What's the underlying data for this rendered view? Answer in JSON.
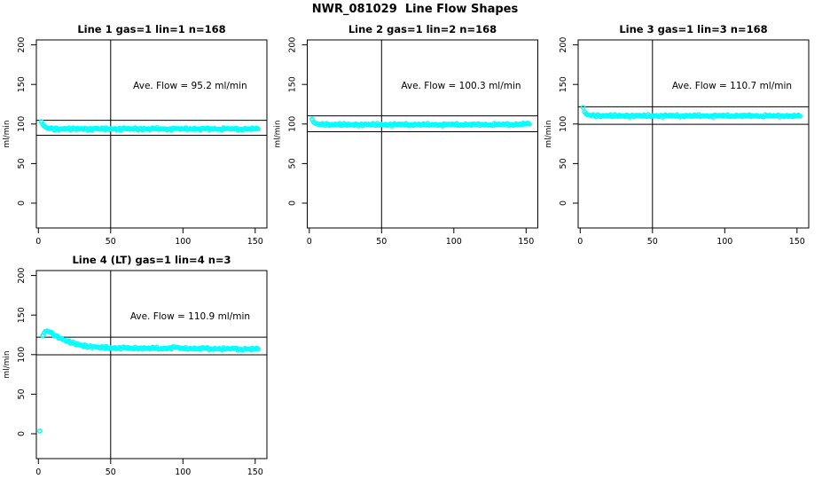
{
  "main_title": "NWR_081029  Line Flow Shapes",
  "colors": {
    "points": "#00ffff",
    "lines": "#000000",
    "background": "#ffffff",
    "text": "#000000"
  },
  "axes": {
    "ylabel": "ml/min",
    "x_ticks": [
      0,
      50,
      100,
      150
    ],
    "y_ticks": [
      0,
      50,
      100,
      150,
      200
    ],
    "vline_x": 50
  },
  "chart_data": [
    {
      "type": "scatter",
      "title": "Line 1 gas=1 lin=1 n=168",
      "annotation": "Ave. Flow =  95.2  ml/min",
      "ave_flow": 95.2,
      "units": "ml/min",
      "n": 168,
      "gas": 1,
      "lin": 1,
      "hlines": [
        104.7,
        85.7
      ],
      "vline": 50,
      "trace": [
        [
          2,
          103
        ],
        [
          3,
          99.5
        ],
        [
          4,
          97.5
        ],
        [
          5,
          96
        ],
        [
          6,
          95
        ],
        [
          8,
          94.3
        ],
        [
          10,
          94
        ],
        [
          15,
          93.8
        ],
        [
          20,
          94
        ],
        [
          25,
          93.6
        ],
        [
          30,
          94.2
        ],
        [
          35,
          93.5
        ],
        [
          40,
          94
        ],
        [
          45,
          93.7
        ],
        [
          50,
          94.1
        ],
        [
          55,
          93.6
        ],
        [
          60,
          94
        ],
        [
          65,
          93.8
        ],
        [
          70,
          94.2
        ],
        [
          75,
          93.5
        ],
        [
          80,
          93.9
        ],
        [
          85,
          94.1
        ],
        [
          90,
          93.6
        ],
        [
          95,
          94
        ],
        [
          100,
          93.7
        ],
        [
          105,
          94.2
        ],
        [
          110,
          93.5
        ],
        [
          115,
          93.9
        ],
        [
          120,
          94.1
        ],
        [
          125,
          93.6
        ],
        [
          130,
          94
        ],
        [
          135,
          93.8
        ],
        [
          140,
          93.5
        ],
        [
          145,
          94
        ],
        [
          150,
          93.7
        ],
        [
          152,
          93.8
        ]
      ]
    },
    {
      "type": "scatter",
      "title": "Line 2 gas=1 lin=2 n=168",
      "annotation": "Ave. Flow =  100.3  ml/min",
      "ave_flow": 100.3,
      "units": "ml/min",
      "n": 168,
      "gas": 1,
      "lin": 2,
      "hlines": [
        110.3,
        90.3
      ],
      "vline": 50,
      "trace": [
        [
          2,
          106
        ],
        [
          3,
          102.5
        ],
        [
          4,
          101
        ],
        [
          5,
          100.2
        ],
        [
          6,
          99.8
        ],
        [
          8,
          99.5
        ],
        [
          10,
          99.6
        ],
        [
          15,
          99.2
        ],
        [
          20,
          99.5
        ],
        [
          25,
          99
        ],
        [
          30,
          99.4
        ],
        [
          35,
          99.1
        ],
        [
          40,
          99.5
        ],
        [
          45,
          99.2
        ],
        [
          50,
          99.4
        ],
        [
          55,
          99
        ],
        [
          60,
          99.3
        ],
        [
          65,
          99.6
        ],
        [
          70,
          99.1
        ],
        [
          75,
          99.4
        ],
        [
          80,
          99.2
        ],
        [
          85,
          99.5
        ],
        [
          90,
          99
        ],
        [
          95,
          99.3
        ],
        [
          100,
          99.5
        ],
        [
          105,
          99.1
        ],
        [
          110,
          99.4
        ],
        [
          115,
          99.2
        ],
        [
          120,
          99.5
        ],
        [
          125,
          99
        ],
        [
          130,
          99.4
        ],
        [
          135,
          99.6
        ],
        [
          140,
          99.3
        ],
        [
          145,
          99.8
        ],
        [
          150,
          100
        ],
        [
          152,
          100.1
        ]
      ]
    },
    {
      "type": "scatter",
      "title": "Line 3 gas=1 lin=3 n=168",
      "annotation": "Ave. Flow =  110.7  ml/min",
      "ave_flow": 110.7,
      "units": "ml/min",
      "n": 168,
      "gas": 1,
      "lin": 3,
      "hlines": [
        121.8,
        99.6
      ],
      "vline": 50,
      "trace": [
        [
          2,
          121
        ],
        [
          3,
          115.5
        ],
        [
          4,
          113
        ],
        [
          5,
          111.8
        ],
        [
          6,
          111.2
        ],
        [
          8,
          110.8
        ],
        [
          10,
          110.6
        ],
        [
          15,
          110.4
        ],
        [
          20,
          110.6
        ],
        [
          25,
          110.2
        ],
        [
          30,
          110.5
        ],
        [
          35,
          110.3
        ],
        [
          40,
          110.6
        ],
        [
          45,
          110.2
        ],
        [
          50,
          110.5
        ],
        [
          55,
          110.1
        ],
        [
          60,
          110.4
        ],
        [
          65,
          110.6
        ],
        [
          70,
          110.2
        ],
        [
          75,
          110.5
        ],
        [
          80,
          110.3
        ],
        [
          85,
          110.6
        ],
        [
          90,
          110.1
        ],
        [
          95,
          110.4
        ],
        [
          100,
          110.6
        ],
        [
          105,
          110.2
        ],
        [
          110,
          110.5
        ],
        [
          115,
          110.3
        ],
        [
          120,
          110.6
        ],
        [
          125,
          110.1
        ],
        [
          130,
          110.4
        ],
        [
          135,
          110.2
        ],
        [
          140,
          110.5
        ],
        [
          145,
          110
        ],
        [
          150,
          110.2
        ],
        [
          152,
          110.1
        ]
      ]
    },
    {
      "type": "scatter",
      "title": "Line 4 (LT) gas=1 lin=4 n=3",
      "annotation": "Ave. Flow =  110.9  ml/min",
      "ave_flow": 110.9,
      "units": "ml/min",
      "n": 3,
      "gas": 1,
      "lin": 4,
      "hlines": [
        122.0,
        99.8
      ],
      "vline": 50,
      "trace": [
        [
          1,
          3.5
        ],
        [
          3,
          124
        ],
        [
          4,
          127.5
        ],
        [
          5,
          129.5
        ],
        [
          6,
          130
        ],
        [
          7,
          129.3
        ],
        [
          8,
          128.2
        ],
        [
          10,
          126.3
        ],
        [
          12,
          124.2
        ],
        [
          15,
          121
        ],
        [
          18,
          118.6
        ],
        [
          20,
          117
        ],
        [
          25,
          113.8
        ],
        [
          30,
          111.8
        ],
        [
          35,
          110.4
        ],
        [
          40,
          109.4
        ],
        [
          45,
          108.9
        ],
        [
          50,
          108.6
        ],
        [
          55,
          108.3
        ],
        [
          60,
          108.6
        ],
        [
          65,
          107.9
        ],
        [
          70,
          108.4
        ],
        [
          75,
          107.8
        ],
        [
          80,
          108.3
        ],
        [
          85,
          107.6
        ],
        [
          90,
          108.4
        ],
        [
          95,
          109.2
        ],
        [
          100,
          107.6
        ],
        [
          105,
          108
        ],
        [
          110,
          107.3
        ],
        [
          115,
          108.2
        ],
        [
          120,
          107.1
        ],
        [
          125,
          107.8
        ],
        [
          130,
          107
        ],
        [
          135,
          107.6
        ],
        [
          140,
          106.8
        ],
        [
          145,
          107.3
        ],
        [
          150,
          106.9
        ],
        [
          152,
          107
        ]
      ]
    }
  ]
}
